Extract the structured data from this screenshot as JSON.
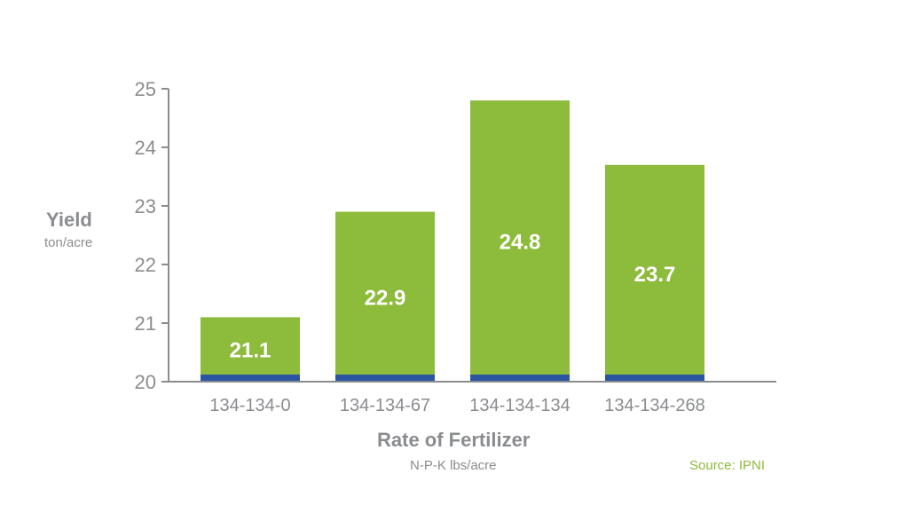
{
  "chart_data": {
    "type": "bar",
    "categories": [
      "134-134-0",
      "134-134-67",
      "134-134-134",
      "134-134-268"
    ],
    "values": [
      21.1,
      22.9,
      24.8,
      23.7
    ],
    "data_labels": [
      "21.1",
      "22.9",
      "24.8",
      "23.7"
    ],
    "ylim": [
      20,
      25
    ],
    "yticks": [
      20,
      21,
      22,
      23,
      24,
      25
    ],
    "ylabel": "Yield",
    "ylabel_unit": "ton/acre",
    "xlabel": "Rate of Fertilizer",
    "xlabel_unit": "N-P-K lbs/acre",
    "grid": false,
    "colors": {
      "bar": "#8dbb3c",
      "bar_base": "#2b55a3",
      "axis": "#8a8c8f",
      "text": "#8a8c8f",
      "source": "#8dbb3c"
    }
  },
  "source": "Source: IPNI"
}
